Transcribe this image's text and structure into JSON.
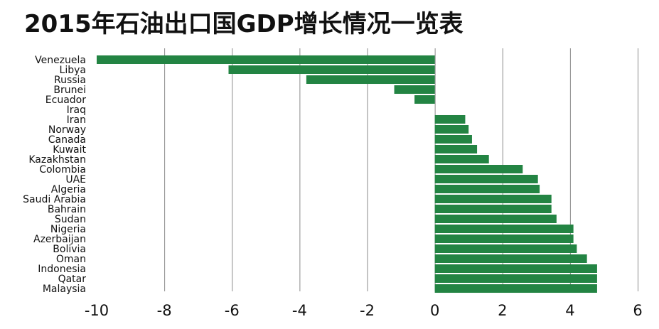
{
  "chart_data": {
    "type": "bar",
    "orientation": "horizontal",
    "title": "2015年石油出口国GDP增长情况一览表",
    "xlabel": "",
    "ylabel": "",
    "xlim": [
      -10,
      6
    ],
    "xticks": [
      -10,
      -8,
      -6,
      -4,
      -2,
      0,
      2,
      4,
      6
    ],
    "grid": true,
    "legend": "none",
    "bar_color": "#238443",
    "categories": [
      "Venezuela",
      "Libya",
      "Russia",
      "Brunei",
      "Ecuador",
      "Iraq",
      "Iran",
      "Norway",
      "Canada",
      "Kuwait",
      "Kazakhstan",
      "Colombia",
      "UAE",
      "Algeria",
      "Saudi Arabia",
      "Bahrain",
      "Sudan",
      "Nigeria",
      "Azerbaijan",
      "Bolivia",
      "Oman",
      "Indonesia",
      "Qatar",
      "Malaysia"
    ],
    "values": [
      -10.0,
      -6.1,
      -3.8,
      -1.2,
      -0.6,
      0.0,
      0.9,
      1.0,
      1.1,
      1.25,
      1.6,
      2.6,
      3.05,
      3.1,
      3.45,
      3.45,
      3.6,
      4.1,
      4.1,
      4.2,
      4.5,
      4.8,
      4.8,
      4.8
    ]
  }
}
